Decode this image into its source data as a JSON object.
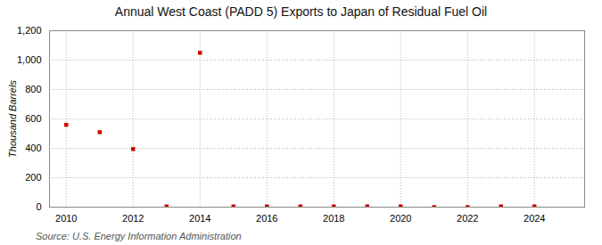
{
  "chart_data": {
    "type": "scatter",
    "title": "Annual West Coast (PADD 5) Exports to Japan of Residual Fuel Oil",
    "ylabel": "Thousand Barrels",
    "source": "Source: U.S. Energy Information Administration",
    "x": [
      2010,
      2011,
      2012,
      2013,
      2014,
      2015,
      2016,
      2017,
      2018,
      2019,
      2020,
      2021,
      2022,
      2023,
      2024
    ],
    "values": [
      560,
      510,
      395,
      5,
      1050,
      5,
      5,
      5,
      5,
      5,
      5,
      0,
      0,
      5,
      5
    ],
    "color": "#cc0000",
    "marker": "square",
    "xlim": [
      2009.5,
      2025.5
    ],
    "ylim": [
      0,
      1200
    ],
    "xticks": [
      2010,
      2012,
      2014,
      2016,
      2018,
      2020,
      2022,
      2024
    ],
    "yticks": [
      0,
      200,
      400,
      600,
      800,
      {
        "value": 1000,
        "label": "1,000"
      },
      {
        "value": 1200,
        "label": "1,200"
      }
    ],
    "grid": true
  }
}
